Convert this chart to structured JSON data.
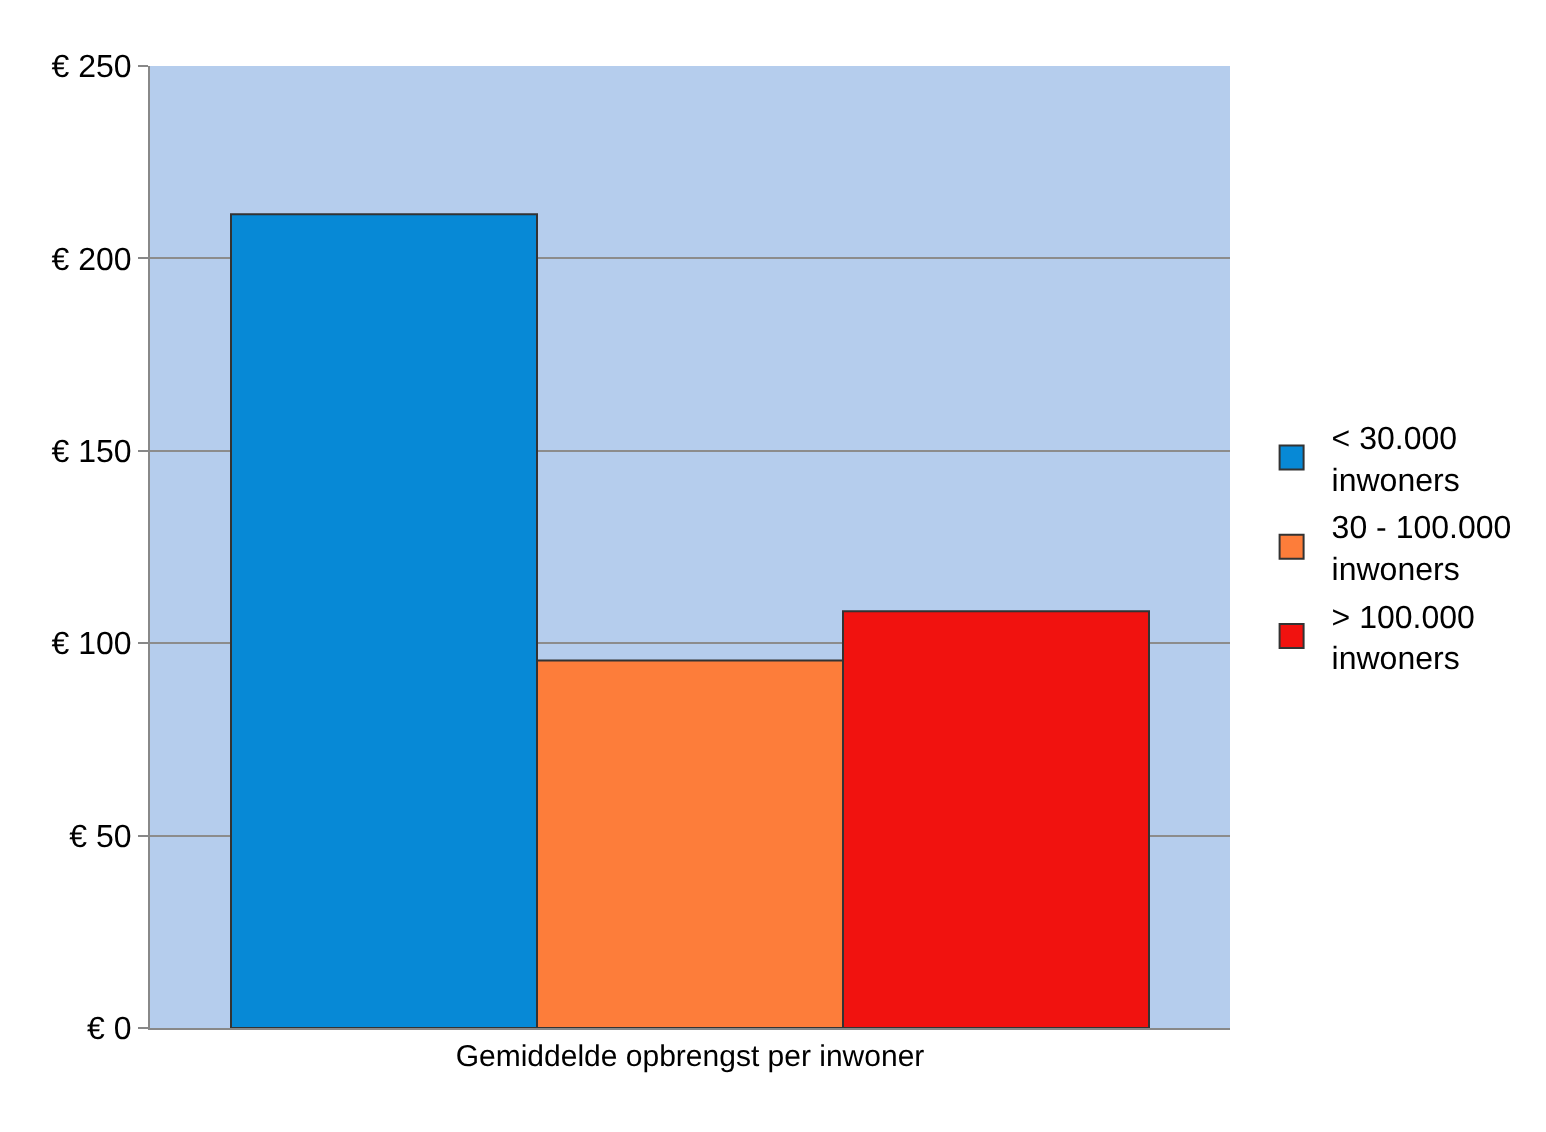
{
  "chart_data": {
    "type": "bar",
    "categories": [
      "Gemiddelde opbrengst per inwoner"
    ],
    "series": [
      {
        "name": "< 30.000 inwoners",
        "color": "#0789d6",
        "values": [
          211.5
        ]
      },
      {
        "name": "30 - 100.000 inwoners",
        "color": "#fd7d3a",
        "values": [
          95.5
        ]
      },
      {
        "name": "> 100.000 inwoners",
        "color": "#f1120f",
        "values": [
          108.3
        ]
      }
    ],
    "ylim": [
      0,
      250
    ],
    "yticks": [
      {
        "value": 0,
        "label": "€ 0"
      },
      {
        "value": 50,
        "label": "€ 50"
      },
      {
        "value": 100,
        "label": "€ 100"
      },
      {
        "value": 150,
        "label": "€ 150"
      },
      {
        "value": 200,
        "label": "€ 200"
      },
      {
        "value": 250,
        "label": "€ 250"
      }
    ],
    "grid": "y",
    "legend": "right"
  }
}
